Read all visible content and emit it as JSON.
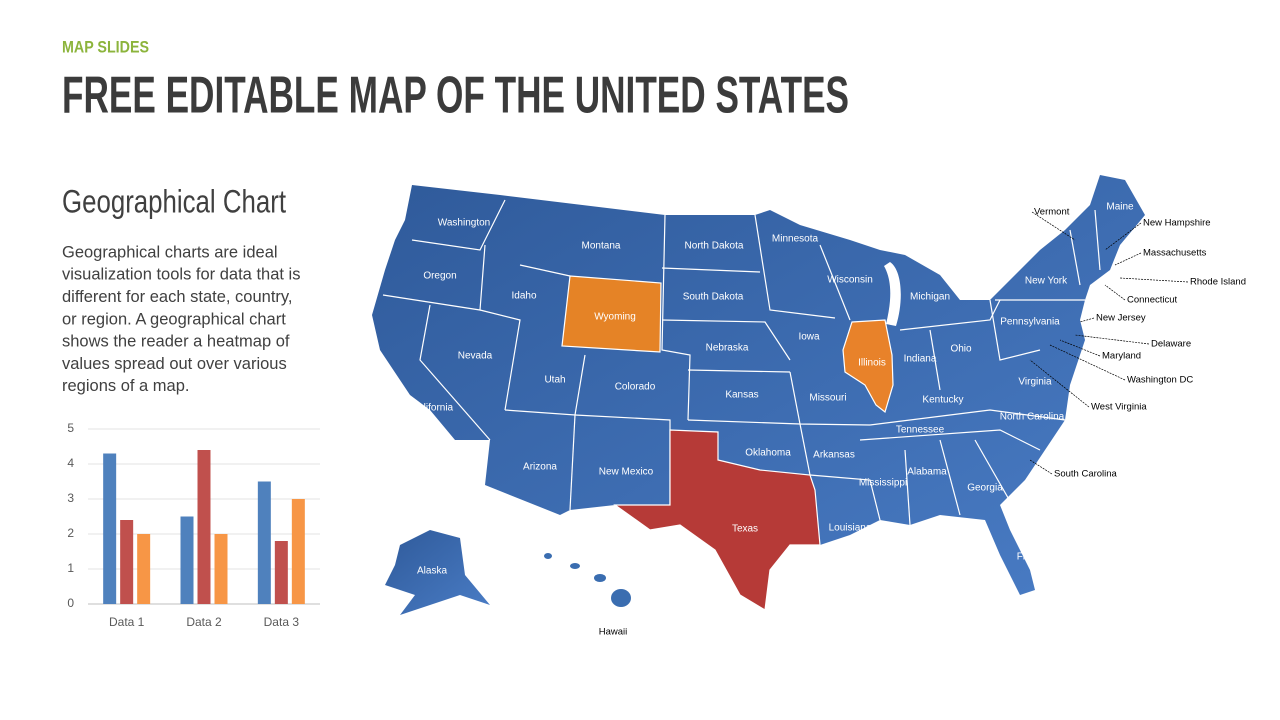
{
  "header": {
    "label": "MAP SLIDES",
    "title": "FREE EDITABLE MAP OF THE UNITED STATES"
  },
  "section": {
    "title": "Geographical Chart",
    "body_lines": [
      "Geographical charts are ideal",
      "visualization tools for data that is",
      "different for each state, country,",
      "or region. A geographical chart",
      "shows the reader a heatmap of",
      "values spread out over various",
      "regions of a map."
    ]
  },
  "map": {
    "states": [
      "Washington",
      "Oregon",
      "California",
      "Nevada",
      "Idaho",
      "Montana",
      "Wyoming",
      "Utah",
      "Colorado",
      "Arizona",
      "New Mexico",
      "North Dakota",
      "South Dakota",
      "Nebraska",
      "Kansas",
      "Oklahoma",
      "Texas",
      "Minnesota",
      "Iowa",
      "Missouri",
      "Arkansas",
      "Louisiana",
      "Wisconsin",
      "Illinois",
      "Michigan",
      "Indiana",
      "Ohio",
      "Kentucky",
      "Tennessee",
      "Mississippi",
      "Alabama",
      "Georgia",
      "Florida",
      "South Carolina",
      "North Carolina",
      "Virginia",
      "West Virginia",
      "Pennsylvania",
      "New York",
      "Maine",
      "Vermont",
      "New Hampshire",
      "Massachusetts",
      "Rhode Island",
      "Connecticut",
      "New Jersey",
      "Delaware",
      "Maryland",
      "Washington DC",
      "Alaska",
      "Hawaii"
    ]
  },
  "chart_data": {
    "type": "bar",
    "categories": [
      "Data 1",
      "Data 2",
      "Data 3"
    ],
    "series": [
      {
        "color": "#4f81bd",
        "values": [
          4.3,
          2.5,
          3.5
        ]
      },
      {
        "color": "#c0504d",
        "values": [
          2.4,
          4.4,
          1.8
        ]
      },
      {
        "color": "#f79646",
        "values": [
          2,
          2,
          3
        ]
      }
    ],
    "ylim": [
      0,
      5
    ],
    "yticks": [
      0,
      1,
      2,
      3,
      4,
      5
    ],
    "grid": true
  }
}
